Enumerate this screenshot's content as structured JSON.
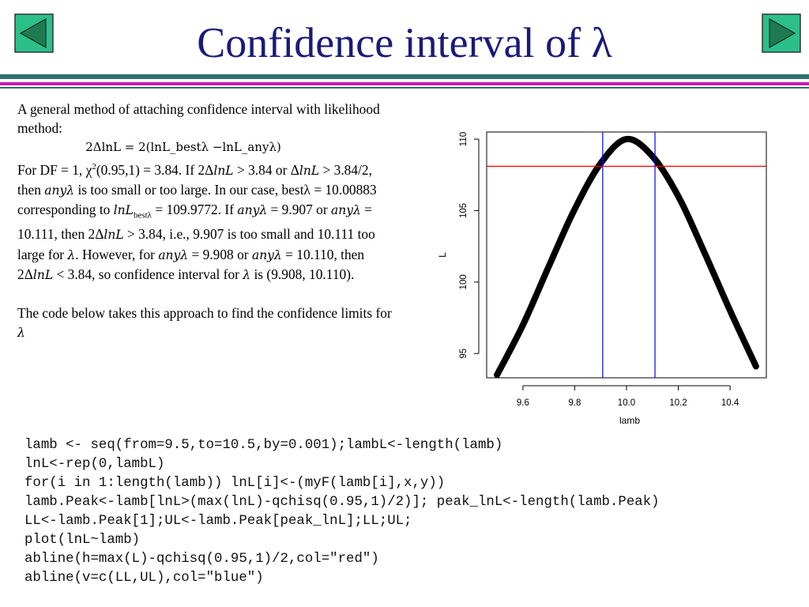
{
  "title": "Confidence interval of λ",
  "nav": {
    "prev": "previous-slide",
    "next": "next-slide"
  },
  "body": {
    "intro": "A general method of attaching confidence interval with likelihood method:",
    "formula": "2ΔlnL = 2(lnL_bestλ −lnL_anyλ)",
    "p1": {
      "a": "For DF = 1, χ",
      "sup": "2",
      "b": "(0.95,1) = 3.84. If 2Δ",
      "m1": "lnL",
      "c": " > 3.84 or Δ",
      "m2": "lnL",
      "d": " > 3.84/2, then ",
      "m3": "anyλ",
      "e": " is too small or too large. In our case, bestλ = 10.00883 corresponding to ",
      "m4": "lnL",
      "sub4": "bestλ",
      "f": " = 109.9772. If ",
      "m5": "anyλ",
      "g": " = 9.907 or ",
      "m6": "anyλ",
      "h": " = 10.111, then 2Δ",
      "m7": "lnL",
      "i": " > 3.84, i.e., 9.907 is too small and 10.111 too large for ",
      "m8": "λ",
      "j": ". However, for ",
      "m9": "anyλ",
      "k": " = 9.908 or ",
      "m10": "anyλ",
      "l": " = 10.110, then 2Δ",
      "m11": "lnL",
      "mm": " < 3.84, so confidence interval for ",
      "m12": "λ",
      "n": " is (9.908, 10.110)."
    },
    "p2": "The code below takes this approach to find the confidence limits for ",
    "p2_m": "λ"
  },
  "code_lines": [
    "lamb <- seq(from=9.5,to=10.5,by=0.001);lambL<-length(lamb)",
    "lnL<-rep(0,lambL)",
    "for(i in 1:length(lamb)) lnL[i]<-(myF(lamb[i],x,y))",
    "lamb.Peak<-lamb[lnL>(max(lnL)-qchisq(0.95,1)/2)]; peak_lnL<-length(lamb.Peak)",
    "LL<-lamb.Peak[1];UL<-lamb.Peak[peak_lnL];LL;UL;",
    "plot(lnL~lamb)",
    "abline(h=max(L)-qchisq(0.95,1)/2,col=\"red\")",
    "abline(v=c(LL,UL),col=\"blue\")"
  ],
  "colors": {
    "title": "#1a1a7a",
    "nav": "#2bbf8a",
    "teal": "#2e6f6e",
    "magenta": "#c41ab8",
    "hline": "#ff0000",
    "vline": "#0000ff"
  },
  "chart_data": {
    "type": "scatter",
    "xlabel": "lamb",
    "ylabel": "L",
    "x_ticks": [
      9.6,
      9.8,
      10.0,
      10.2,
      10.4
    ],
    "x_tick_labels": [
      "9.6",
      "9.8",
      "10.0",
      "10.2",
      "10.4"
    ],
    "y_ticks": [
      95,
      100,
      105,
      110
    ],
    "y_tick_labels": [
      "95",
      "100",
      "105",
      "110"
    ],
    "xlim": [
      9.46,
      10.54
    ],
    "ylim": [
      93.3,
      110.5
    ],
    "points": [
      [
        9.5,
        93.5
      ],
      [
        9.6,
        97.0
      ],
      [
        9.7,
        101.1
      ],
      [
        9.8,
        105.1
      ],
      [
        9.9,
        108.3
      ],
      [
        10.0,
        110.0
      ],
      [
        10.1,
        108.8
      ],
      [
        10.2,
        106.0
      ],
      [
        10.3,
        102.1
      ],
      [
        10.4,
        98.0
      ],
      [
        10.5,
        94.1
      ]
    ],
    "hline": 108.1,
    "vlines": [
      9.908,
      10.11
    ],
    "grid": false
  }
}
